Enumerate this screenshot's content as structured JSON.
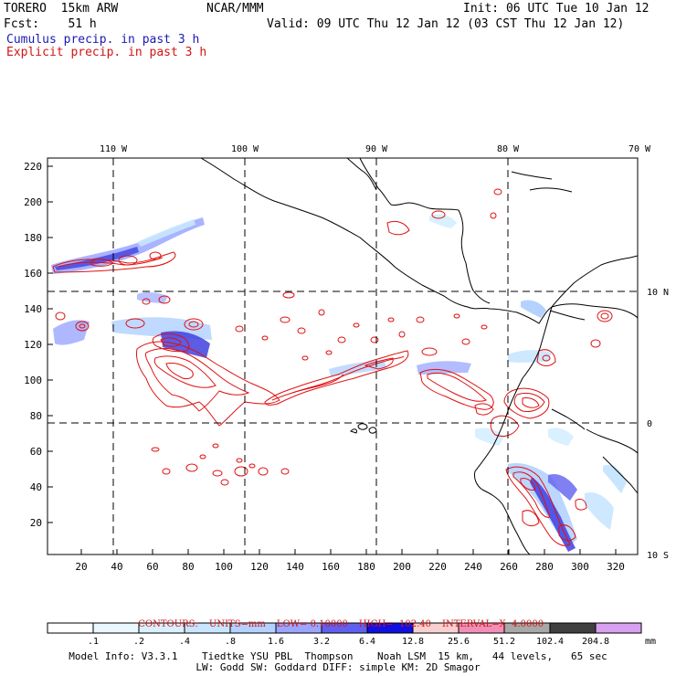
{
  "header": {
    "model": "TORERO  15km ARW",
    "org": "NCAR/MMM",
    "init": "Init: 06 UTC Tue 10 Jan 12",
    "fcst": "Fcst:    51 h",
    "valid": "Valid: 09 UTC Thu 12 Jan 12 (03 CST Thu 12 Jan 12)",
    "legend_cumulus": "Cumulus precip. in past 3 h",
    "legend_explicit": "Explicit precip. in past 3 h"
  },
  "colors": {
    "cumulus": "#1a1ab4",
    "explicit": "#d21414",
    "contour": "#e01010",
    "coast": "#000000"
  },
  "map": {
    "lon_labels": [
      "110 W",
      "100 W",
      "90 W",
      "80 W",
      "70 W"
    ],
    "lat_labels": [
      "10 N",
      "0",
      "10 S"
    ],
    "y_ticks": [
      "220",
      "200",
      "180",
      "160",
      "140",
      "120",
      "100",
      "80",
      "60",
      "40",
      "20"
    ],
    "x_ticks": [
      "20",
      "40",
      "60",
      "80",
      "100",
      "120",
      "140",
      "160",
      "180",
      "200",
      "220",
      "240",
      "260",
      "280",
      "300",
      "320"
    ]
  },
  "contour_info": {
    "label": "CONTOURS:",
    "units": "UNITS=mm",
    "low": "LOW= 0.10000",
    "high": "HIGH=  102.40",
    "interval": "INTERVAL=X  4.0000"
  },
  "colorbar": {
    "unit": "mm",
    "labels": [
      ".1",
      ".2",
      ".4",
      ".8",
      "1.6",
      "3.2",
      "6.4",
      "12.8",
      "25.6",
      "51.2",
      "102.4",
      "204.8"
    ],
    "colors": [
      "#ffffff",
      "#eaf7ff",
      "#d8f0ff",
      "#c8e6ff",
      "#b4d2ff",
      "#9aa6ff",
      "#6060f0",
      "#1010e0",
      "#f8d0d0",
      "#f090b8",
      "#a8a8a8",
      "#404040",
      "#d8a0f0"
    ]
  },
  "footer": {
    "line1": "Model Info: V3.3.1    Tiedtke YSU PBL  Thompson    Noah LSM  15 km,   44 levels,   65 sec",
    "line2": "LW: Godd SW: Goddard DIFF: simple KM: 2D Smagor"
  }
}
